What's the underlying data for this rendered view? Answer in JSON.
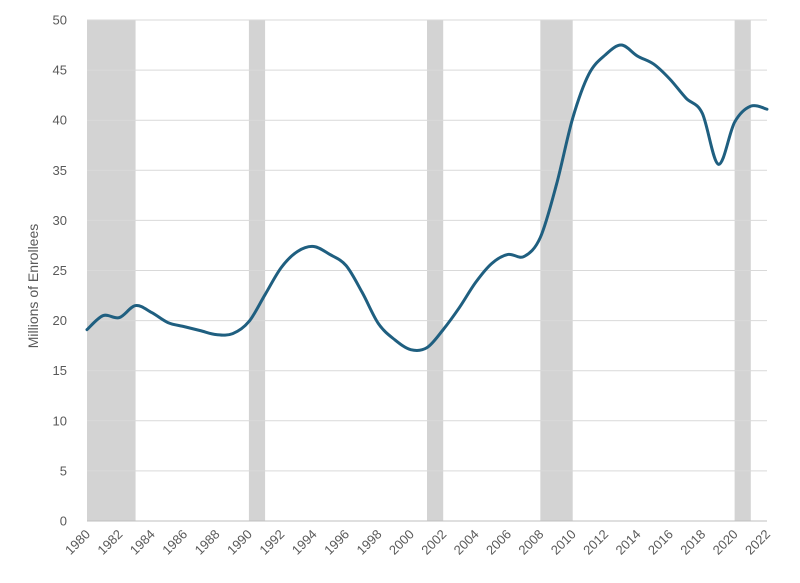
{
  "chart_data": {
    "type": "line",
    "title": "",
    "xlabel": "",
    "ylabel": "Millions of Enrollees",
    "xlim": [
      1980,
      2022
    ],
    "ylim": [
      0,
      50
    ],
    "yticks": [
      0,
      5,
      10,
      15,
      20,
      25,
      30,
      35,
      40,
      45,
      50
    ],
    "xticks": [
      1980,
      1982,
      1984,
      1986,
      1988,
      1990,
      1992,
      1994,
      1996,
      1998,
      2000,
      2002,
      2004,
      2006,
      2008,
      2010,
      2012,
      2014,
      2016,
      2018,
      2020,
      2022
    ],
    "xtick_labels": [
      "1980",
      "1982",
      "1984",
      "1986",
      "1988",
      "1990",
      "1992",
      "1994",
      "1996",
      "1998",
      "2000",
      "2002",
      "2004",
      "2006",
      "2008",
      "2010",
      "2012",
      "2014",
      "2016",
      "2018",
      "2020",
      "2022"
    ],
    "ytick_labels": [
      "0",
      "5",
      "10",
      "15",
      "20",
      "25",
      "30",
      "35",
      "40",
      "45",
      "50"
    ],
    "grid": "horizontal",
    "legend": "none",
    "line_color": "#1f5f80",
    "shade_color": "#d3d3d3",
    "recession_shading": [
      {
        "start": 1980,
        "end": 1983
      },
      {
        "start": 1990,
        "end": 1991
      },
      {
        "start": 2001,
        "end": 2002
      },
      {
        "start": 2008,
        "end": 2010
      },
      {
        "start": 2020,
        "end": 2021
      }
    ],
    "series": [
      {
        "x": [
          1980,
          1981,
          1982,
          1983,
          1984,
          1985,
          1986,
          1987,
          1988,
          1989,
          1990,
          1991,
          1992,
          1993,
          1994,
          1995,
          1996,
          1997,
          1998,
          1999,
          2000,
          2001,
          2002,
          2003,
          2004,
          2005,
          2006,
          2007,
          2008,
          2009,
          2010,
          2011,
          2012,
          2013,
          2014,
          2015,
          2016,
          2017,
          2018,
          2019,
          2020,
          2021,
          2022
        ],
        "values": [
          19.1,
          20.5,
          20.3,
          21.5,
          20.8,
          19.8,
          19.4,
          19.0,
          18.6,
          18.7,
          19.9,
          22.6,
          25.3,
          26.9,
          27.4,
          26.6,
          25.5,
          22.8,
          19.7,
          18.1,
          17.1,
          17.3,
          19.1,
          21.3,
          23.8,
          25.7,
          26.6,
          26.4,
          28.3,
          33.6,
          40.2,
          44.6,
          46.5,
          47.5,
          46.4,
          45.6,
          44.1,
          42.2,
          40.7,
          35.6,
          39.8,
          41.4,
          41.1
        ]
      }
    ]
  }
}
